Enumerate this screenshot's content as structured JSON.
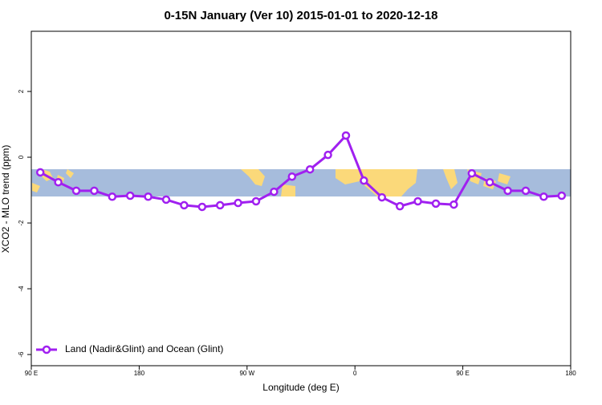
{
  "chart_data": {
    "type": "line",
    "title": "0-15N January (Ver 10)   2015-01-01 to 2020-12-18",
    "x_label": "Longitude (deg E)",
    "y_label": "XCO2 - MLO trend (ppm)",
    "x": [
      97.5,
      112.5,
      127.5,
      142.5,
      157.5,
      172.5,
      187.5,
      202.5,
      217.5,
      232.5,
      247.5,
      262.5,
      277.5,
      292.5,
      307.5,
      322.5,
      337.5,
      352.5,
      367.5,
      382.5,
      397.5,
      412.5,
      427.5,
      442.5,
      457.5,
      472.5,
      487.5,
      502.5,
      517.5,
      532.5
    ],
    "series": [
      {
        "name": "Land (Nadir&Glint) and Ocean (Glint)",
        "color": "#a020f0",
        "values": [
          -0.46,
          -0.76,
          -1.02,
          -1.02,
          -1.2,
          -1.17,
          -1.2,
          -1.29,
          -1.46,
          -1.51,
          -1.46,
          -1.39,
          -1.34,
          -1.05,
          -0.59,
          -0.37,
          0.07,
          0.66,
          -0.71,
          -1.22,
          -1.49,
          -1.34,
          -1.41,
          -1.44,
          -0.49,
          -0.76,
          -1.02,
          -1.02,
          -1.2,
          -1.17
        ]
      }
    ],
    "xlim": [
      90,
      540
    ],
    "xticks": [
      {
        "value": 90,
        "label": "90 E"
      },
      180,
      {
        "value": 270,
        "label": "90 W"
      },
      {
        "value": 360,
        "label": "0"
      },
      {
        "value": 450,
        "label": "90 E"
      },
      {
        "value": 540,
        "label": "180"
      }
    ],
    "ylim": [
      -6.34,
      3.83
    ],
    "yticks": [
      -6,
      -4,
      -2,
      0,
      2
    ],
    "legend": "bottom-left"
  }
}
